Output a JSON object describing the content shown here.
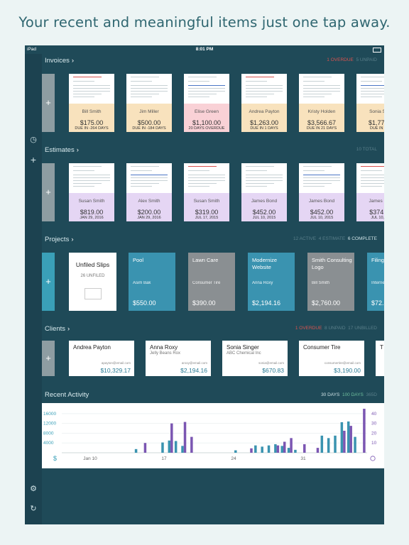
{
  "headline": "Your recent and meaningful items just one tap away.",
  "status": {
    "device": "iPad",
    "time": "8:01 PM"
  },
  "invoices": {
    "title": "Invoices",
    "meta": {
      "overdue": "1 OVERDUE",
      "unpaid": "5 UNPAID"
    },
    "items": [
      {
        "name": "Bill Smith",
        "amount": "$175.00",
        "note": "DUE IN -264 DAYS",
        "color": "#f8e2bd"
      },
      {
        "name": "Jim Miller",
        "amount": "$500.00",
        "note": "DUE IN -184 DAYS",
        "color": "#f8e2bd"
      },
      {
        "name": "Elise Green",
        "amount": "$1,100.00",
        "note": "20 DAYS OVERDUE",
        "color": "#f9d1d6"
      },
      {
        "name": "Andrea Payton",
        "amount": "$1,263.00",
        "note": "DUE IN 1 DAYS",
        "color": "#f8e2bd"
      },
      {
        "name": "Kristy Holden",
        "amount": "$3,566.67",
        "note": "DUE IN 21 DAYS",
        "color": "#f8e2bd"
      },
      {
        "name": "Sonia Sin",
        "amount": "$1,775.",
        "note": "DUE IN 21",
        "color": "#f8e2bd"
      }
    ]
  },
  "estimates": {
    "title": "Estimates",
    "meta": {
      "total": "10 TOTAL"
    },
    "items": [
      {
        "name": "Susan Smith",
        "amount": "$819.00",
        "note": "JAN 29, 2016"
      },
      {
        "name": "Alex Smith",
        "amount": "$200.00",
        "note": "JAN 29, 2016"
      },
      {
        "name": "Susan Smith",
        "amount": "$319.00",
        "note": "JUL 17, 2015"
      },
      {
        "name": "James Bond",
        "amount": "$452.00",
        "note": "JUL 10, 2015"
      },
      {
        "name": "James Bond",
        "amount": "$452.00",
        "note": "JUL 10, 2015"
      },
      {
        "name": "James Bo",
        "amount": "$374.0",
        "note": "JUL 10, 2"
      }
    ]
  },
  "projects": {
    "title": "Projects",
    "meta": {
      "active": "12 ACTIVE",
      "estimate": "4 ESTIMATE",
      "complete": "6 COMPLETE"
    },
    "unfiled": {
      "title": "Unfiled Slips",
      "count": "26 UNFILED"
    },
    "items": [
      {
        "name": "Pool",
        "client": "Asim Bak",
        "amount": "$550.00",
        "color": "#3a93b0"
      },
      {
        "name": "Lawn Care",
        "client": "Consumer Tire",
        "amount": "$390.00",
        "color": "#8a8f92"
      },
      {
        "name": "Modernize Website",
        "client": "Anna Roxy",
        "amount": "$2,194.16",
        "color": "#3a93b0"
      },
      {
        "name": "Smith Consulting Logo",
        "client": "Bill Smith",
        "amount": "$2,760.00",
        "color": "#8a8f92"
      },
      {
        "name": "Filing",
        "client": "Interne",
        "amount": "$72.5",
        "color": "#3a93b0"
      }
    ]
  },
  "clients": {
    "title": "Clients",
    "meta": {
      "overdue": "1 OVERDUE",
      "unpaid": "8 UNPAID",
      "unbilled": "17 UNBILLED"
    },
    "items": [
      {
        "name": "Andrea Payton",
        "company": "",
        "email": "apayton@email.com",
        "amount": "$10,329.17"
      },
      {
        "name": "Anna Roxy",
        "company": "Jelly Beans Rox",
        "email": "aroxy@email.com",
        "amount": "$2,194.16"
      },
      {
        "name": "Sonia Singer",
        "company": "ABC Chemical Inc",
        "email": "sonia@email.com",
        "amount": "$670.83"
      },
      {
        "name": "Consumer Tire",
        "company": "",
        "email": "consumertire@email.com",
        "amount": "$3,190.00"
      },
      {
        "name": "T",
        "company": "",
        "email": "",
        "amount": ""
      }
    ]
  },
  "activity": {
    "title": "Recent Activity",
    "ranges": [
      "30 DAYS",
      "100 DAYS",
      "365D"
    ],
    "currency_symbol": "$"
  },
  "chart_data": {
    "type": "bar",
    "title": "Recent Activity",
    "x_ticks": [
      "Jan 10",
      "17",
      "24",
      "31"
    ],
    "y_left_ticks": [
      "16000",
      "12000",
      "8000",
      "4000"
    ],
    "y_right_ticks": [
      "40",
      "30",
      "20",
      "10"
    ],
    "ylim_left": [
      0,
      18000
    ],
    "ylim_right": [
      0,
      45
    ],
    "series": [
      {
        "color": "#3a93b0",
        "axis": "left",
        "values": [
          0,
          0,
          0,
          0,
          0,
          0,
          0,
          0,
          0,
          0,
          0,
          1500,
          0,
          0,
          0,
          4200,
          5000,
          4800,
          2800,
          0,
          0,
          0,
          0,
          0,
          0,
          0,
          1000,
          0,
          0,
          3000,
          2500,
          3000,
          3500,
          2800,
          2000,
          1200,
          0,
          0,
          0,
          7000,
          6000,
          7000,
          12500,
          12800,
          6500,
          0
        ]
      },
      {
        "color": "#7b56b2",
        "axis": "left",
        "values": [
          0,
          0,
          0,
          0,
          0,
          0,
          0,
          0,
          0,
          0,
          0,
          0,
          4000,
          0,
          0,
          0,
          12000,
          0,
          12600,
          6500,
          0,
          0,
          0,
          0,
          0,
          0,
          0,
          0,
          1800,
          0,
          0,
          0,
          3000,
          4500,
          6000,
          0,
          3500,
          0,
          2000,
          0,
          0,
          0,
          9000,
          11000,
          0,
          19500
        ]
      }
    ]
  }
}
